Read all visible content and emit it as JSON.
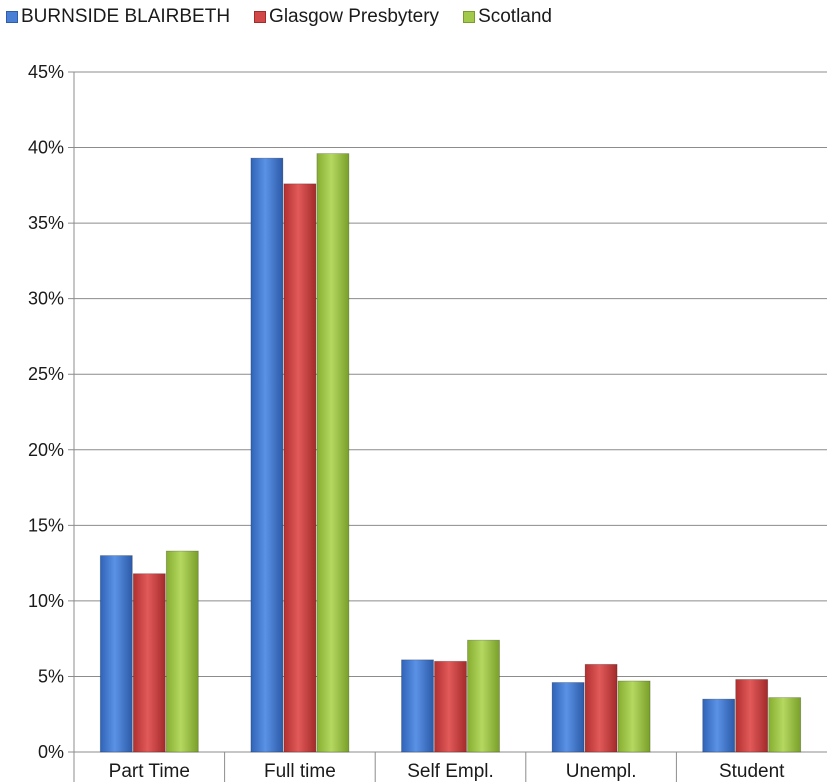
{
  "chart_data": {
    "type": "bar",
    "categories": [
      "Part Time",
      "Full time",
      "Self Empl.",
      "Unempl.",
      "Student"
    ],
    "series": [
      {
        "name": "BURNSIDE BLAIRBETH",
        "color": "#4a7fd6",
        "values": [
          13.0,
          39.3,
          6.1,
          4.6,
          3.5
        ]
      },
      {
        "name": "Glasgow Presbytery",
        "color": "#d24848",
        "values": [
          11.8,
          37.6,
          6.0,
          5.8,
          4.8
        ]
      },
      {
        "name": "Scotland",
        "color": "#a2c94a",
        "values": [
          13.3,
          39.6,
          7.4,
          4.7,
          3.6
        ]
      }
    ],
    "y_ticks": [
      "0%",
      "5%",
      "10%",
      "15%",
      "20%",
      "25%",
      "30%",
      "35%",
      "40%",
      "45%"
    ],
    "ylim": [
      0,
      45
    ],
    "grid": true,
    "legend_position": "top-left"
  }
}
